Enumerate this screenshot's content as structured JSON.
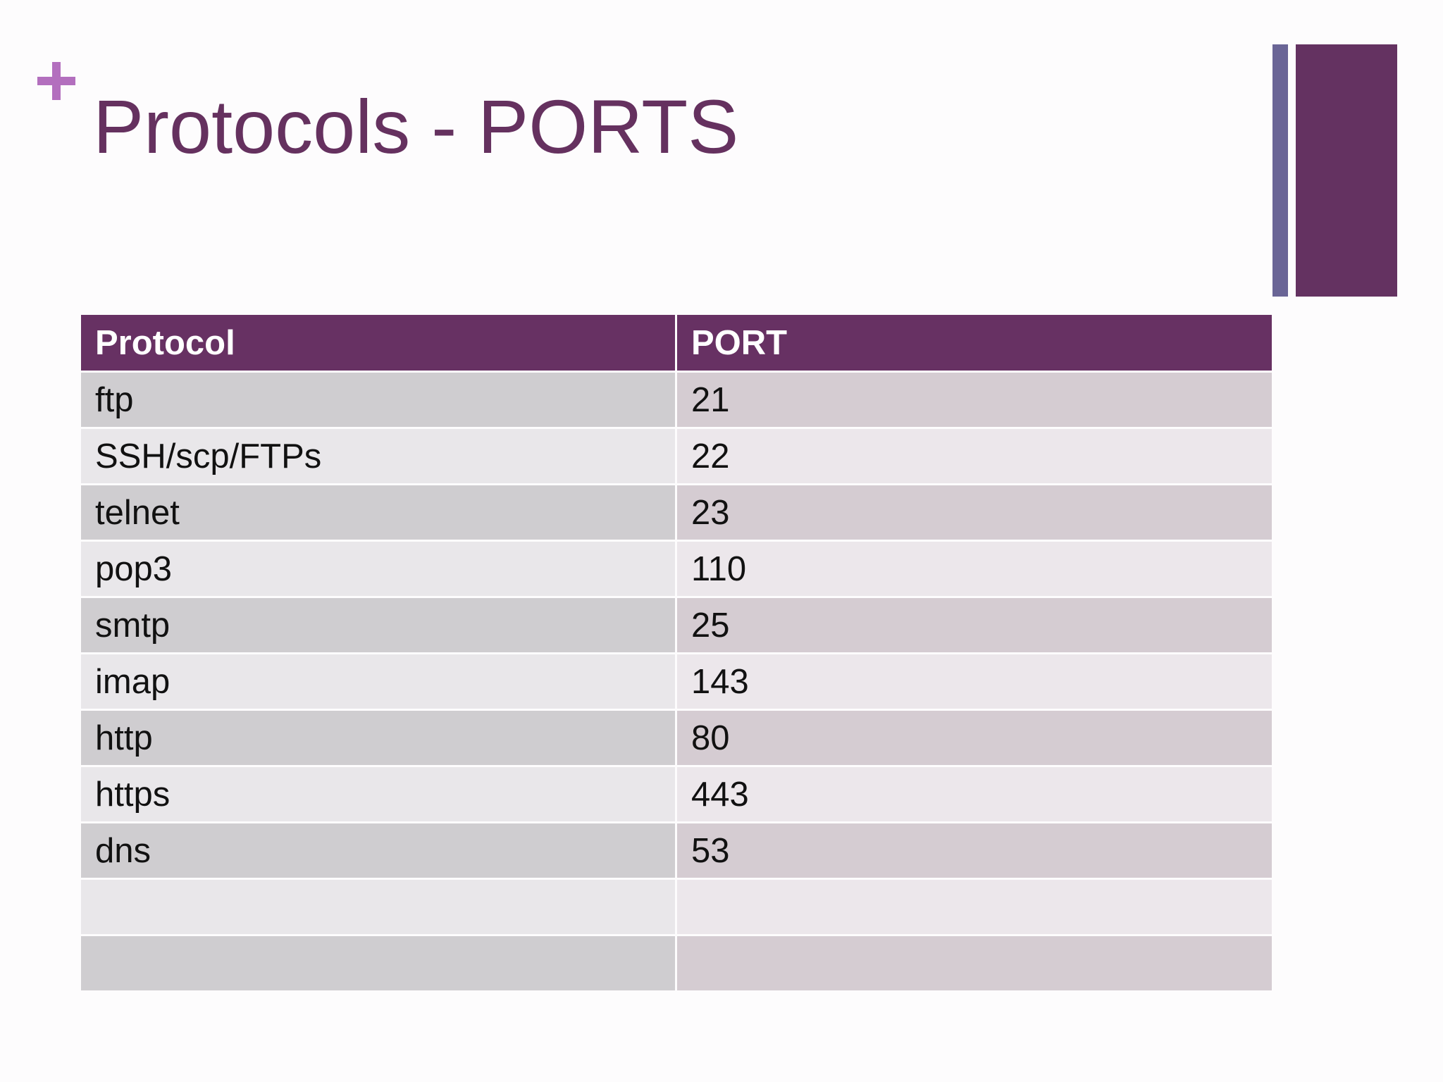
{
  "slide": {
    "title": "Protocols - PORTS",
    "accent_color": "#b36fbe",
    "title_color": "#65315f"
  },
  "table": {
    "headers": [
      "Protocol",
      "PORT"
    ],
    "rows": [
      [
        "ftp",
        "21"
      ],
      [
        "SSH/scp/FTPs",
        "22"
      ],
      [
        "telnet",
        "23"
      ],
      [
        "pop3",
        "110"
      ],
      [
        "smtp",
        "25"
      ],
      [
        "imap",
        "143"
      ],
      [
        "http",
        "80"
      ],
      [
        "https",
        "443"
      ],
      [
        "dns",
        "53"
      ],
      [
        "",
        ""
      ],
      [
        "",
        ""
      ]
    ],
    "header_color": "#673163"
  }
}
